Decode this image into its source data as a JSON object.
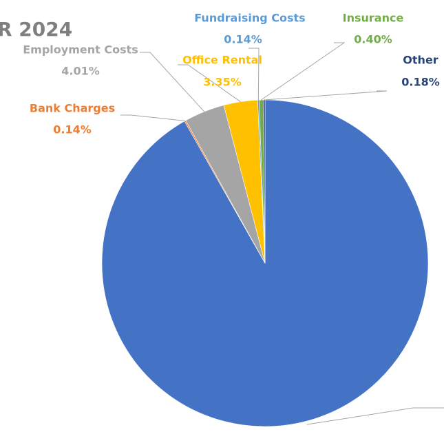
{
  "chart_data": {
    "type": "pie",
    "title": "R 2024",
    "categories": [
      null,
      "Bank Charges",
      "Employment Costs",
      "Office Rental",
      "Fundraising Costs",
      "Insurance",
      "Other"
    ],
    "values": [
      91.78,
      0.14,
      4.01,
      3.35,
      0.14,
      0.4,
      0.18
    ],
    "value_labels": [
      null,
      "0.14%",
      "4.01%",
      "3.35%",
      "0.14%",
      "0.40%",
      "0.18%"
    ],
    "colors": [
      "#4472c4",
      "#ed7d31",
      "#a5a5a5",
      "#ffc000",
      "#5b9bd5",
      "#70ad47",
      "#264478"
    ]
  }
}
